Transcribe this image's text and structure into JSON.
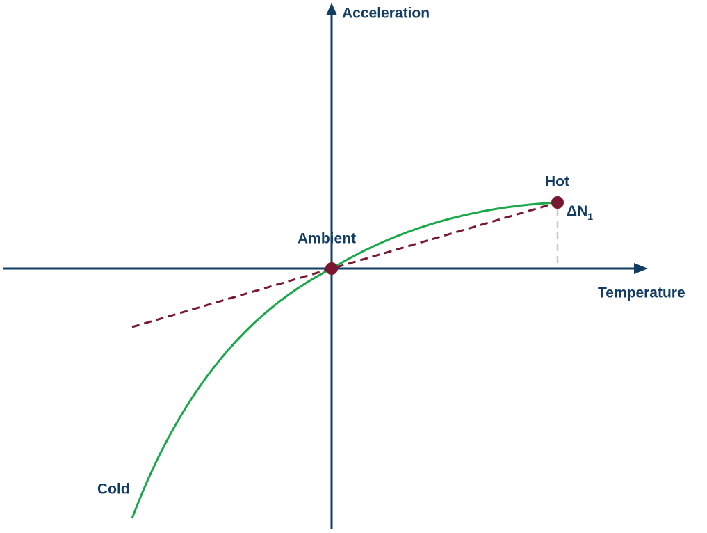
{
  "axes": {
    "y_label": "Acceleration",
    "x_label": "Temperature"
  },
  "points": {
    "ambient": "Ambient",
    "hot": "Hot",
    "cold": "Cold"
  },
  "delta": {
    "main": "ΔN",
    "subscript": "1"
  }
}
